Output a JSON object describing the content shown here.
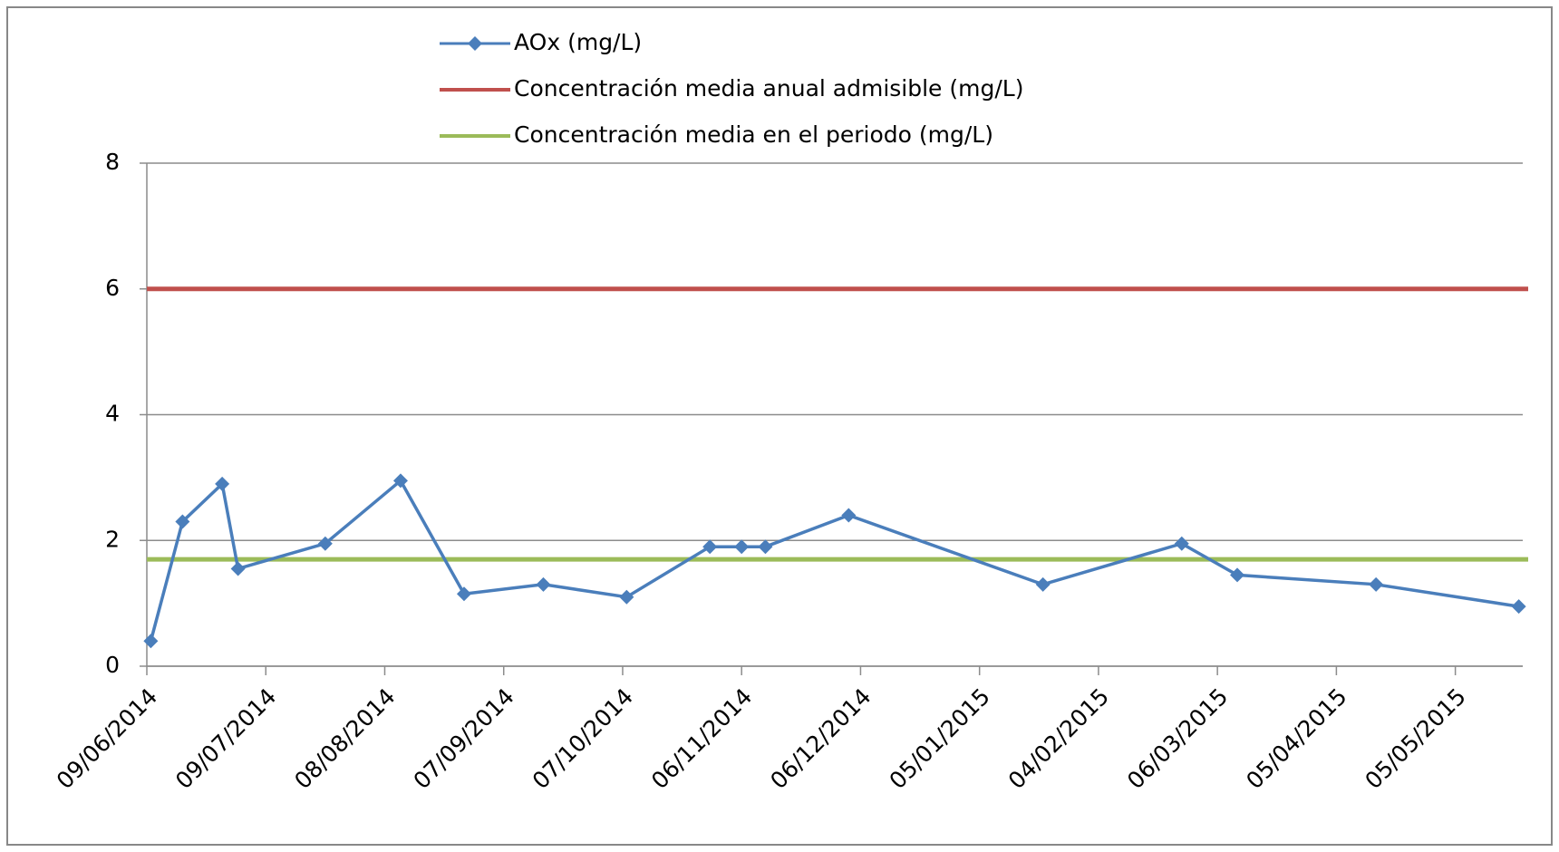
{
  "chart_data": {
    "type": "line",
    "series": [
      {
        "name": "AOx (mg/L)",
        "color": "#4a7ebb",
        "x": [
          "2014-06-10",
          "2014-06-18",
          "2014-06-28",
          "2014-07-02",
          "2014-07-24",
          "2014-08-12",
          "2014-08-28",
          "2014-09-17",
          "2014-10-08",
          "2014-10-29",
          "2014-11-06",
          "2014-11-12",
          "2014-12-03",
          "2015-01-21",
          "2015-02-25",
          "2015-03-11",
          "2015-04-15",
          "2015-05-21"
        ],
        "values": [
          0.4,
          2.3,
          2.9,
          1.55,
          1.95,
          2.95,
          1.15,
          1.3,
          1.1,
          1.9,
          1.9,
          1.9,
          2.4,
          1.3,
          1.95,
          1.45,
          1.3,
          0.95
        ]
      }
    ],
    "reference_lines": [
      {
        "name": "Concentración media anual admisible  (mg/L)",
        "color": "#c0504d",
        "value": 6
      },
      {
        "name": "Concentración media en el periodo (mg/L)",
        "color": "#9bbb59",
        "value": 1.7
      }
    ],
    "xlim": [
      "2014-06-09",
      "2015-05-22"
    ],
    "xticks": [
      {
        "value": "2014-06-09",
        "label": "09/06/2014"
      },
      {
        "value": "2014-07-09",
        "label": "09/07/2014"
      },
      {
        "value": "2014-08-08",
        "label": "08/08/2014"
      },
      {
        "value": "2014-09-07",
        "label": "07/09/2014"
      },
      {
        "value": "2014-10-07",
        "label": "07/10/2014"
      },
      {
        "value": "2014-11-06",
        "label": "06/11/2014"
      },
      {
        "value": "2014-12-06",
        "label": "06/12/2014"
      },
      {
        "value": "2015-01-05",
        "label": "05/01/2015"
      },
      {
        "value": "2015-02-04",
        "label": "04/02/2015"
      },
      {
        "value": "2015-03-06",
        "label": "06/03/2015"
      },
      {
        "value": "2015-04-05",
        "label": "05/04/2015"
      },
      {
        "value": "2015-05-05",
        "label": "05/05/2015"
      }
    ],
    "ylim": [
      0,
      8
    ],
    "yticks": [
      0,
      2,
      4,
      6,
      8
    ],
    "grid": true,
    "legend": "top"
  }
}
